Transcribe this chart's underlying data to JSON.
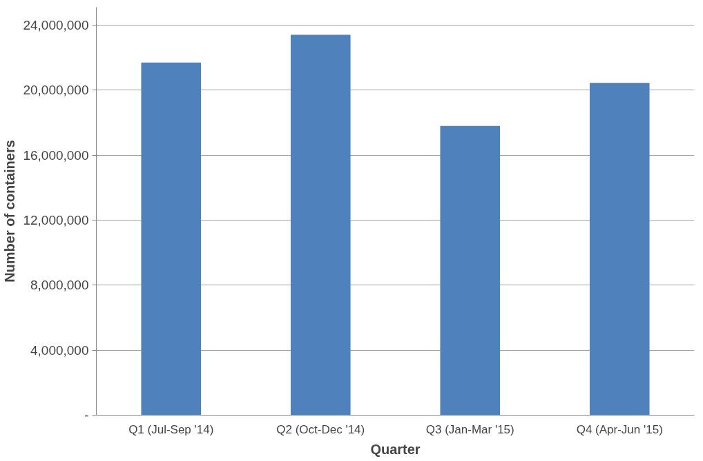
{
  "chart_data": {
    "type": "bar",
    "xlabel": "Quarter",
    "ylabel": "Number of containers",
    "categories": [
      "Q1 (Jul-Sep '14)",
      "Q2 (Oct-Dec '14)",
      "Q3 (Jan-Mar '15)",
      "Q4 (Apr-Jun '15)"
    ],
    "values": [
      21700000,
      23400000,
      17800000,
      20450000
    ],
    "color": "#4f81bd",
    "ylim": [
      0,
      25100000
    ],
    "yticks": [
      {
        "value": 0,
        "label": "-"
      },
      {
        "value": 4000000,
        "label": "4,000,000"
      },
      {
        "value": 8000000,
        "label": "8,000,000"
      },
      {
        "value": 12000000,
        "label": "12,000,000"
      },
      {
        "value": 16000000,
        "label": "16,000,000"
      },
      {
        "value": 20000000,
        "label": "20,000,000"
      },
      {
        "value": 24000000,
        "label": "24,000,000"
      }
    ],
    "grid": "y"
  }
}
